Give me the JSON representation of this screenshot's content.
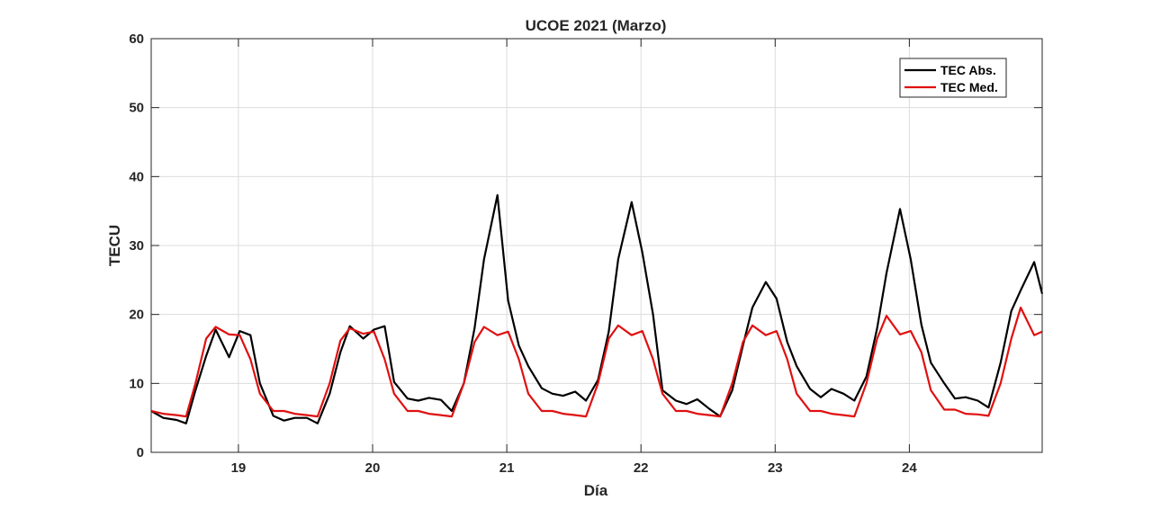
{
  "chart_data": {
    "type": "line",
    "title": "UCOE 2021 (Marzo)",
    "xlabel": "Día",
    "ylabel": "TECU",
    "xlim": [
      18.35,
      24.99
    ],
    "ylim": [
      0,
      60
    ],
    "x_ticks": [
      19,
      20,
      21,
      22,
      23,
      24
    ],
    "x_tick_labels": [
      "19",
      "20",
      "21",
      "22",
      "23",
      "24"
    ],
    "y_ticks": [
      0,
      10,
      20,
      30,
      40,
      50,
      60
    ],
    "y_tick_labels": [
      "0",
      "10",
      "20",
      "30",
      "40",
      "50",
      "60"
    ],
    "grid": true,
    "legend_position": "top-right",
    "series": [
      {
        "name": "TEC Abs.",
        "color": "#000000",
        "x": [
          18.35,
          18.44,
          18.54,
          18.61,
          18.68,
          18.76,
          18.83,
          18.93,
          19.01,
          19.09,
          19.16,
          19.26,
          19.34,
          19.42,
          19.51,
          19.59,
          19.68,
          19.76,
          19.83,
          19.93,
          20.01,
          20.09,
          20.16,
          20.26,
          20.34,
          20.42,
          20.51,
          20.59,
          20.68,
          20.76,
          20.83,
          20.93,
          21.01,
          21.09,
          21.16,
          21.26,
          21.34,
          21.42,
          21.51,
          21.59,
          21.68,
          21.76,
          21.83,
          21.93,
          22.01,
          22.09,
          22.16,
          22.26,
          22.34,
          22.42,
          22.51,
          22.59,
          22.68,
          22.76,
          22.83,
          22.93,
          23.01,
          23.09,
          23.16,
          23.26,
          23.34,
          23.42,
          23.51,
          23.59,
          23.68,
          23.76,
          23.83,
          23.93,
          24.01,
          24.09,
          24.16,
          24.26,
          24.34,
          24.42,
          24.51,
          24.59,
          24.68,
          24.76,
          24.83,
          24.93,
          24.99
        ],
        "y": [
          6.0,
          5.0,
          4.7,
          4.2,
          9.0,
          14.0,
          17.8,
          13.8,
          17.6,
          17.0,
          10.0,
          5.3,
          4.6,
          5.0,
          5.0,
          4.2,
          8.5,
          14.5,
          18.3,
          16.5,
          17.8,
          18.3,
          10.2,
          7.8,
          7.5,
          7.9,
          7.6,
          6.0,
          10.0,
          18.0,
          28.0,
          37.3,
          22.0,
          15.5,
          12.5,
          9.3,
          8.5,
          8.2,
          8.8,
          7.5,
          10.5,
          17.5,
          28.0,
          36.3,
          29.0,
          20.0,
          9.0,
          7.5,
          7.0,
          7.7,
          6.3,
          5.2,
          9.0,
          15.5,
          21.0,
          24.7,
          22.3,
          16.0,
          12.5,
          9.2,
          8.0,
          9.2,
          8.5,
          7.5,
          11.0,
          18.0,
          26.0,
          35.3,
          28.0,
          18.5,
          13.0,
          10.0,
          7.8,
          8.0,
          7.5,
          6.5,
          13.0,
          20.5,
          23.5,
          27.6,
          23.0
        ]
      },
      {
        "name": "TEC Med.",
        "color": "#e01010",
        "x": [
          18.35,
          18.44,
          18.54,
          18.61,
          18.68,
          18.76,
          18.83,
          18.93,
          19.01,
          19.09,
          19.16,
          19.26,
          19.34,
          19.42,
          19.51,
          19.59,
          19.68,
          19.76,
          19.83,
          19.93,
          20.01,
          20.09,
          20.16,
          20.26,
          20.34,
          20.42,
          20.51,
          20.59,
          20.68,
          20.76,
          20.83,
          20.93,
          21.01,
          21.09,
          21.16,
          21.26,
          21.34,
          21.42,
          21.51,
          21.59,
          21.68,
          21.76,
          21.83,
          21.93,
          22.01,
          22.09,
          22.16,
          22.26,
          22.34,
          22.42,
          22.51,
          22.59,
          22.68,
          22.76,
          22.83,
          22.93,
          23.01,
          23.09,
          23.16,
          23.26,
          23.34,
          23.42,
          23.51,
          23.59,
          23.68,
          23.76,
          23.83,
          23.93,
          24.01,
          24.09,
          24.16,
          24.26,
          24.34,
          24.42,
          24.51,
          24.59,
          24.68,
          24.76,
          24.83,
          24.93,
          24.99
        ],
        "y": [
          6.0,
          5.6,
          5.4,
          5.2,
          10.0,
          16.5,
          18.2,
          17.1,
          17.0,
          13.5,
          8.5,
          6.0,
          6.0,
          5.6,
          5.4,
          5.2,
          10.0,
          16.2,
          18.0,
          17.2,
          17.5,
          13.5,
          8.5,
          6.0,
          6.0,
          5.6,
          5.4,
          5.2,
          10.0,
          16.0,
          18.2,
          17.0,
          17.5,
          13.5,
          8.5,
          6.0,
          6.0,
          5.6,
          5.4,
          5.2,
          10.0,
          16.5,
          18.4,
          17.0,
          17.6,
          13.5,
          8.5,
          6.0,
          6.0,
          5.6,
          5.4,
          5.2,
          10.0,
          16.0,
          18.4,
          17.0,
          17.6,
          13.5,
          8.5,
          6.0,
          6.0,
          5.6,
          5.4,
          5.2,
          10.0,
          16.5,
          19.8,
          17.1,
          17.6,
          14.5,
          9.0,
          6.2,
          6.2,
          5.6,
          5.5,
          5.3,
          10.0,
          16.5,
          21.0,
          17.0,
          17.5
        ]
      }
    ]
  }
}
